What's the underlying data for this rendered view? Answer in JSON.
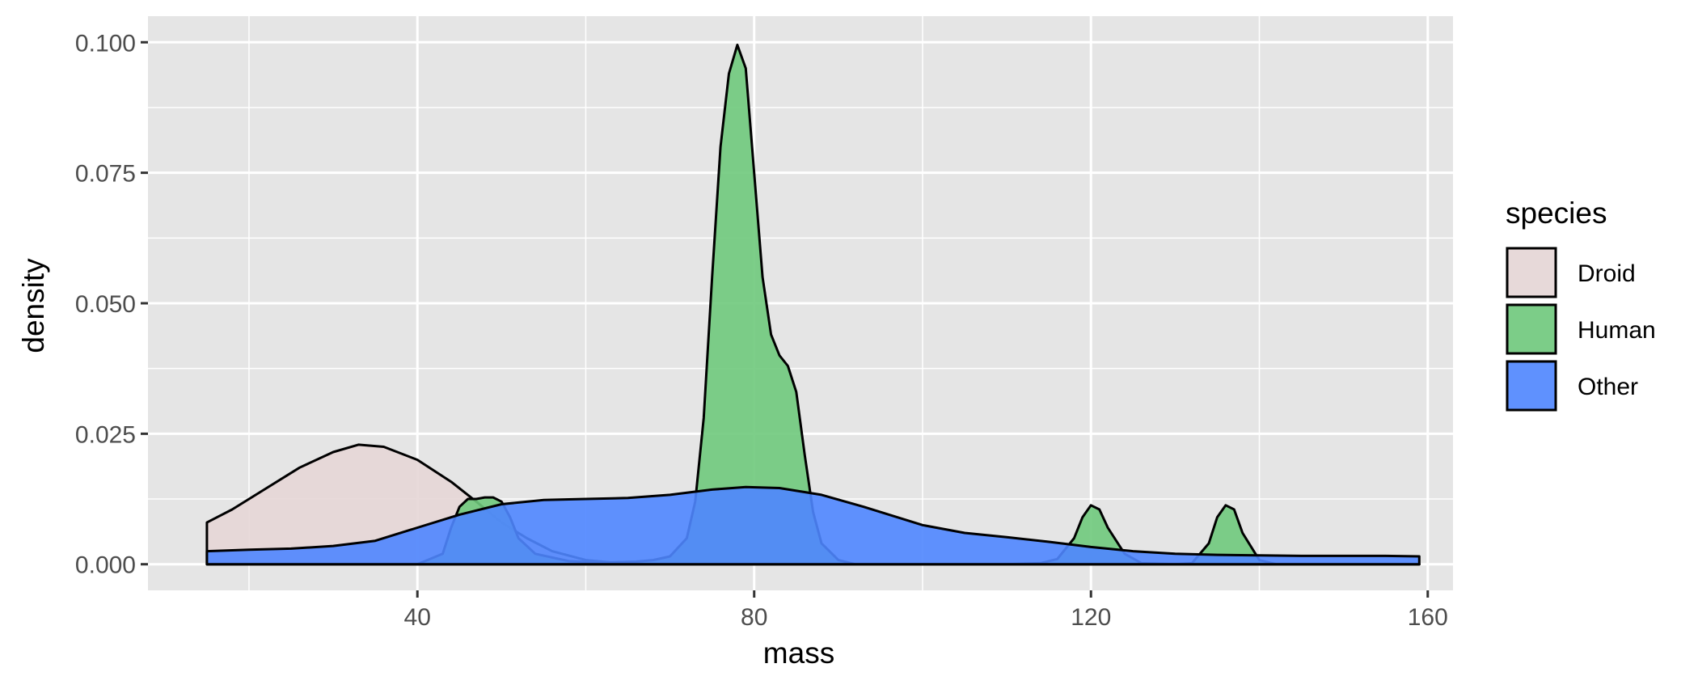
{
  "chart_data": {
    "type": "area",
    "subtype": "density",
    "title": "",
    "xlabel": "mass",
    "ylabel": "density",
    "xlim": [
      8,
      163
    ],
    "ylim": [
      -0.005,
      0.105
    ],
    "x_ticks": [
      40,
      80,
      120,
      160
    ],
    "x_tick_labels": [
      "40",
      "80",
      "120",
      "160"
    ],
    "y_ticks": [
      0,
      0.025,
      0.05,
      0.075,
      0.1
    ],
    "y_tick_labels": [
      "0.000",
      "0.025",
      "0.050",
      "0.075",
      "0.100"
    ],
    "grid": true,
    "panel_background": "#e5e5e5",
    "legend": {
      "title": "species",
      "position": "right"
    },
    "series": [
      {
        "name": "Droid",
        "color": "#e6d6d6",
        "x": [
          15,
          18,
          22,
          26,
          30,
          33,
          36,
          40,
          44,
          47,
          50,
          53,
          56,
          60,
          64,
          68,
          72,
          76,
          80,
          85,
          90,
          100,
          110,
          120,
          130,
          140,
          150,
          159
        ],
        "y": [
          0.008,
          0.0105,
          0.0145,
          0.0185,
          0.0215,
          0.0229,
          0.0225,
          0.02,
          0.0158,
          0.012,
          0.008,
          0.005,
          0.0025,
          0.0008,
          0.0002,
          0.0,
          0.0,
          0.0,
          0.0,
          0.0,
          0.0,
          0.0,
          0.0,
          0.0,
          0.0,
          0.0,
          0.0,
          0.0
        ]
      },
      {
        "name": "Human",
        "color": "#6fc97c",
        "x": [
          15,
          40,
          43,
          44,
          45,
          46,
          47,
          48,
          49,
          50,
          51,
          52,
          54,
          58,
          62,
          66,
          68,
          70,
          72,
          73,
          74,
          75,
          76,
          77,
          78,
          79,
          80,
          81,
          82,
          83,
          84,
          85,
          86,
          87,
          88,
          90,
          92,
          96,
          100,
          110,
          114,
          116,
          118,
          119,
          120,
          121,
          122,
          124,
          126,
          130,
          132,
          134,
          135,
          136,
          137,
          138,
          140,
          142,
          146,
          150,
          159
        ],
        "y": [
          0.0,
          0.0,
          0.002,
          0.007,
          0.011,
          0.0125,
          0.0125,
          0.0128,
          0.0128,
          0.012,
          0.009,
          0.005,
          0.002,
          0.0006,
          0.0003,
          0.0005,
          0.0008,
          0.0015,
          0.005,
          0.012,
          0.028,
          0.055,
          0.08,
          0.094,
          0.0995,
          0.095,
          0.075,
          0.055,
          0.044,
          0.04,
          0.038,
          0.033,
          0.021,
          0.01,
          0.004,
          0.0008,
          0.0,
          0.0,
          0.0,
          0.0,
          0.0002,
          0.001,
          0.005,
          0.009,
          0.0113,
          0.0105,
          0.007,
          0.002,
          0.0002,
          0.0,
          0.0002,
          0.004,
          0.009,
          0.0113,
          0.0105,
          0.006,
          0.0008,
          0.0,
          0.0,
          0.0,
          0.0
        ]
      },
      {
        "name": "Other",
        "color": "#4f86ff",
        "x": [
          15,
          20,
          25,
          30,
          35,
          40,
          45,
          50,
          55,
          60,
          65,
          70,
          75,
          79,
          83,
          88,
          93,
          100,
          105,
          110,
          115,
          120,
          125,
          130,
          135,
          140,
          145,
          150,
          155,
          159
        ],
        "y": [
          0.0025,
          0.0028,
          0.003,
          0.0035,
          0.0045,
          0.007,
          0.0095,
          0.0115,
          0.0123,
          0.0125,
          0.0127,
          0.0133,
          0.0143,
          0.0148,
          0.0146,
          0.0133,
          0.011,
          0.0075,
          0.006,
          0.0052,
          0.0043,
          0.0033,
          0.0025,
          0.002,
          0.0018,
          0.0017,
          0.0016,
          0.0016,
          0.0016,
          0.0015
        ]
      }
    ]
  }
}
